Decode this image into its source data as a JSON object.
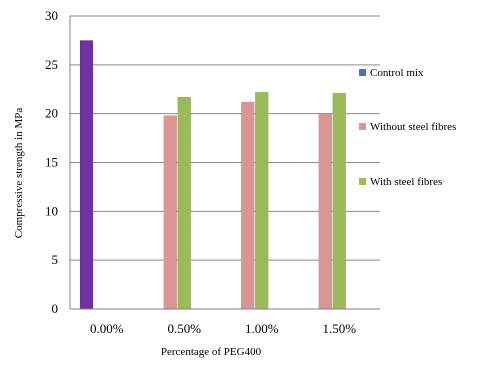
{
  "chart_data": {
    "type": "bar",
    "title": "",
    "xlabel": "Percentage of PEG400",
    "ylabel": "Compressive strength in MPa",
    "categories": [
      "0.00%",
      "0.50%",
      "1.00%",
      "1.50%"
    ],
    "ylim": [
      0,
      30
    ],
    "yticks": [
      0,
      5,
      10,
      15,
      20,
      25,
      30
    ],
    "grid": true,
    "legend_position": "right",
    "series": [
      {
        "name": "Control mix",
        "color": "#4F6FBF",
        "values": [
          27.5,
          null,
          null,
          null
        ]
      },
      {
        "name": "Without steel fibres",
        "color": "#D99694",
        "values": [
          null,
          19.8,
          21.2,
          20.0
        ]
      },
      {
        "name": "With steel fibres",
        "color": "#9BBB59",
        "values": [
          null,
          21.7,
          22.2,
          22.1
        ]
      }
    ],
    "highlight_color": "#7030A0"
  }
}
